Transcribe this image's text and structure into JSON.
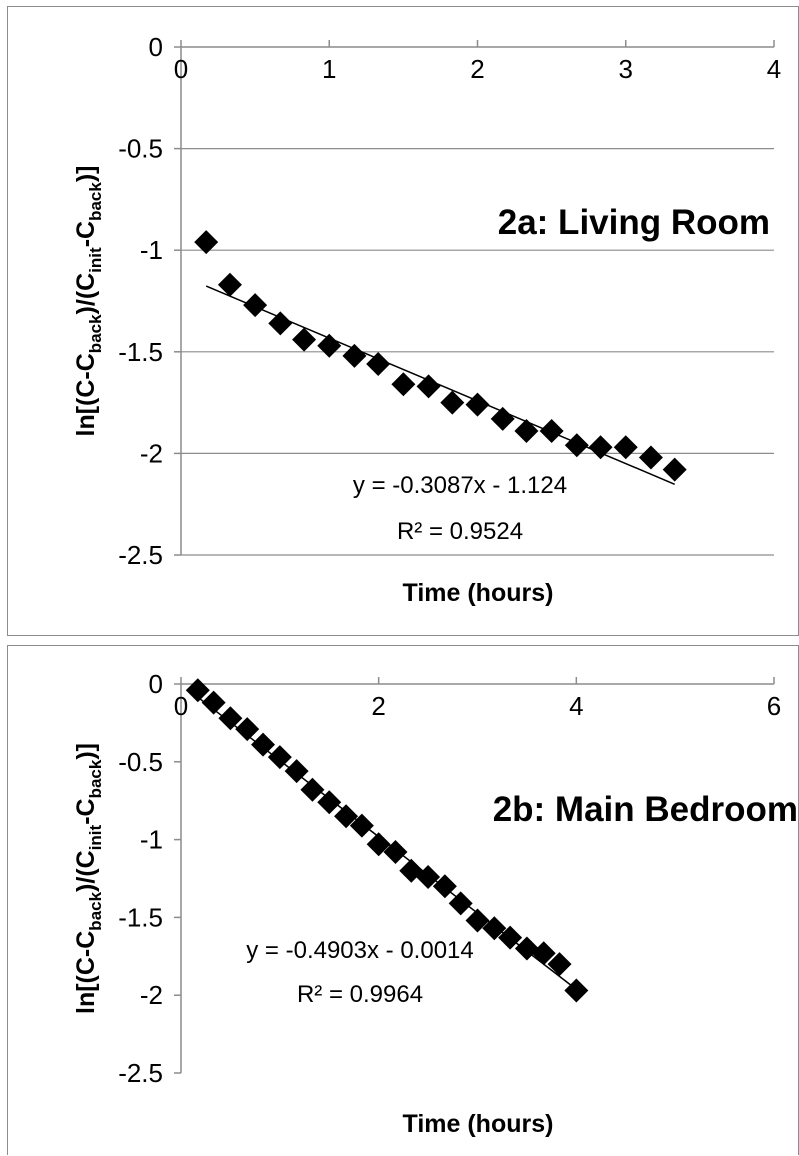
{
  "chart_data": [
    {
      "type": "scatter",
      "title": "2a: Living Room",
      "xlabel": "Time (hours)",
      "ylabel": {
        "main": "ln[(C-C",
        "sub1": "back",
        "mid": ")/(C",
        "sub2": "init",
        "mid2": "-C",
        "sub3": "back",
        "end": ")]"
      },
      "xlim": [
        0,
        4
      ],
      "ylim": [
        -2.5,
        0
      ],
      "xticks": [
        "0",
        "1",
        "2",
        "3",
        "4"
      ],
      "yticks": [
        "0",
        "-0.5",
        "-1",
        "-1.5",
        "-2",
        "-2.5"
      ],
      "grid": "horizontal",
      "x_axis_position": "top",
      "points": {
        "x": [
          0.17,
          0.33,
          0.5,
          0.67,
          0.83,
          1.0,
          1.17,
          1.33,
          1.5,
          1.67,
          1.83,
          2.0,
          2.17,
          2.33,
          2.5,
          2.67,
          2.83,
          3.0,
          3.17,
          3.33
        ],
        "y": [
          -0.96,
          -1.17,
          -1.27,
          -1.36,
          -1.44,
          -1.47,
          -1.52,
          -1.56,
          -1.66,
          -1.67,
          -1.75,
          -1.76,
          -1.83,
          -1.89,
          -1.89,
          -1.96,
          -1.97,
          -1.97,
          -2.02,
          -2.08
        ]
      },
      "trendline": {
        "slope": -0.3087,
        "intercept": -1.124,
        "x_range": [
          0.17,
          3.33
        ]
      },
      "equation": "y = -0.3087x - 1.124",
      "r_squared": "R² = 0.9524"
    },
    {
      "type": "scatter",
      "title": "2b: Main Bedroom",
      "xlabel": "Time (hours)",
      "ylabel": {
        "main": "ln[(C-C",
        "sub1": "back",
        "mid": ")/(C",
        "sub2": "init",
        "mid2": "-C",
        "sub3": "back",
        "end": ")]"
      },
      "xlim": [
        0,
        6
      ],
      "ylim": [
        -2.5,
        0
      ],
      "xticks": [
        "0",
        "2",
        "4",
        "6"
      ],
      "yticks": [
        "0",
        "-0.5",
        "-1",
        "-1.5",
        "-2",
        "-2.5"
      ],
      "grid": "none",
      "x_axis_position": "top",
      "points": {
        "x": [
          0.17,
          0.33,
          0.5,
          0.67,
          0.83,
          1.0,
          1.17,
          1.33,
          1.5,
          1.67,
          1.83,
          2.0,
          2.17,
          2.33,
          2.5,
          2.67,
          2.83,
          3.0,
          3.17,
          3.33,
          3.5,
          3.67,
          3.83,
          4.0
        ],
        "y": [
          -0.04,
          -0.12,
          -0.22,
          -0.29,
          -0.39,
          -0.47,
          -0.56,
          -0.68,
          -0.76,
          -0.85,
          -0.91,
          -1.03,
          -1.08,
          -1.2,
          -1.24,
          -1.3,
          -1.41,
          -1.52,
          -1.57,
          -1.63,
          -1.7,
          -1.73,
          -1.8,
          -1.97
        ]
      },
      "trendline": {
        "slope": -0.4903,
        "intercept": -0.0014,
        "x_range": [
          0.17,
          4.0
        ]
      },
      "equation": "y = -0.4903x - 0.0014",
      "r_squared": "R² = 0.9964"
    }
  ]
}
